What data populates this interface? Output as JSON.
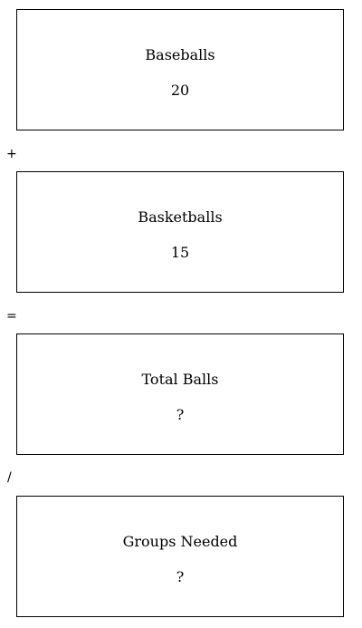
{
  "boxes": [
    {
      "label": "Baseballs",
      "value": "20"
    },
    {
      "label": "Basketballs",
      "value": "15"
    },
    {
      "label": "Total Balls",
      "value": "?"
    },
    {
      "label": "Groups Needed",
      "value": "?"
    }
  ],
  "operators": [
    "+",
    "=",
    "/"
  ]
}
